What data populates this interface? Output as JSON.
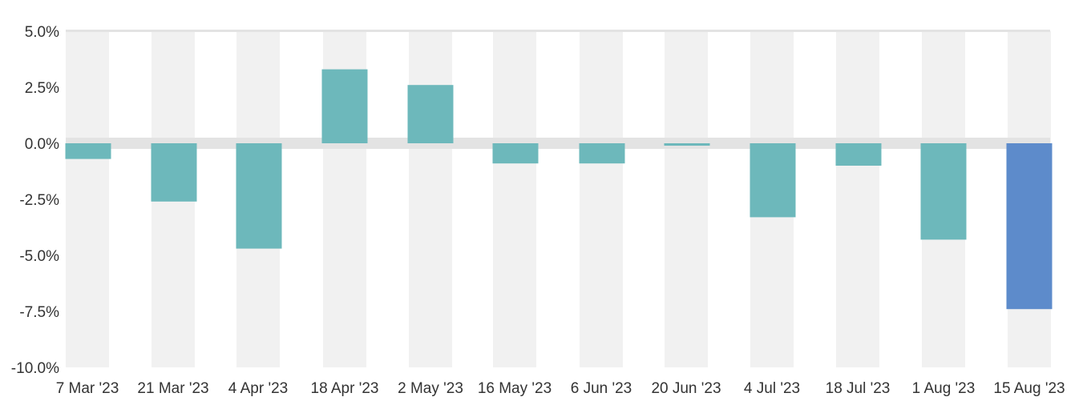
{
  "chart_data": {
    "type": "bar",
    "title": "",
    "xlabel": "",
    "ylabel": "",
    "categories": [
      "7 Mar '23",
      "21 Mar '23",
      "4 Apr '23",
      "18 Apr '23",
      "2 May '23",
      "16 May '23",
      "6 Jun '23",
      "20 Jun '23",
      "4 Jul '23",
      "18 Jul '23",
      "1 Aug '23",
      "15 Aug '23"
    ],
    "values": [
      -0.7,
      -2.6,
      -4.7,
      3.3,
      2.6,
      -0.9,
      -0.9,
      -0.1,
      -3.3,
      -1.0,
      -4.3,
      -7.4
    ],
    "ylim": [
      -10.0,
      5.0
    ],
    "yticks": [
      5.0,
      2.5,
      0.0,
      -2.5,
      -5.0,
      -7.5,
      -10.0
    ],
    "ytick_labels": [
      "5.0%",
      "2.5%",
      "0.0%",
      "-2.5%",
      "-5.0%",
      "-7.5%",
      "-10.0%"
    ],
    "grid": true,
    "colors": {
      "bar": "#6db8bb",
      "highlight": "#5d8bcb",
      "band": "#f1f1f1",
      "zero_line": "#e3e3e3",
      "top_line": "#e3e3e3"
    },
    "highlight_index": 11
  }
}
